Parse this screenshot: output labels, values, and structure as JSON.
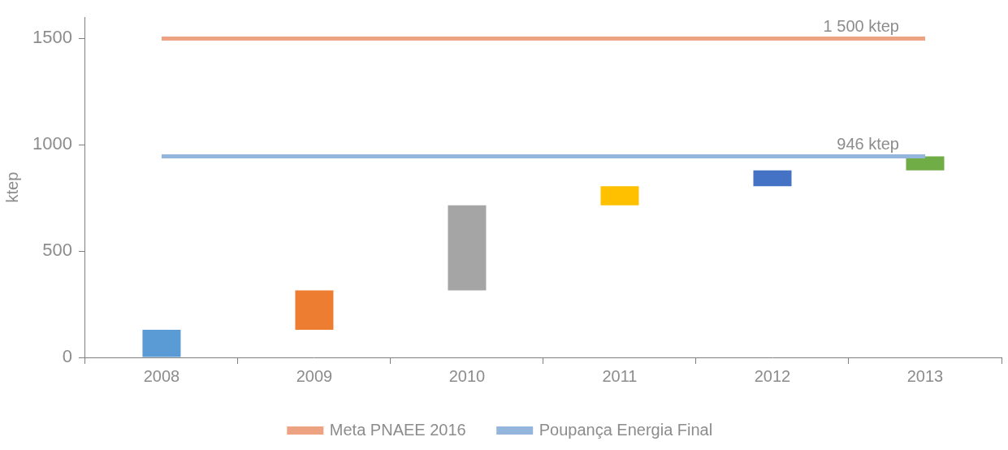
{
  "chart_data": {
    "type": "waterfall",
    "y_label": "ktep",
    "categories": [
      "2008",
      "2009",
      "2010",
      "2011",
      "2012",
      "2013"
    ],
    "values": [
      130,
      185,
      400,
      90,
      75,
      66
    ],
    "colors": [
      "#5b9bd5",
      "#ed7d31",
      "#a5a5a5",
      "#ffc000",
      "#4472c4",
      "#70ad47"
    ],
    "series": [
      {
        "name": "Meta PNAEE 2016",
        "type": "line",
        "color": "#eda281",
        "values": [
          1500,
          1500,
          1500,
          1500,
          1500,
          1500
        ]
      },
      {
        "name": "Poupança Energia Final",
        "type": "line",
        "color": "#94b6dc",
        "values": [
          946,
          946,
          946,
          946,
          946,
          946
        ]
      }
    ],
    "annotations": [
      {
        "text": "1 500 ktep",
        "value": 1500
      },
      {
        "text": "946 ktep",
        "value": 946
      }
    ],
    "ylim": [
      0,
      1600
    ],
    "yticks": [
      0,
      500,
      1000,
      1500
    ],
    "grid": false,
    "legend": "bottom"
  }
}
